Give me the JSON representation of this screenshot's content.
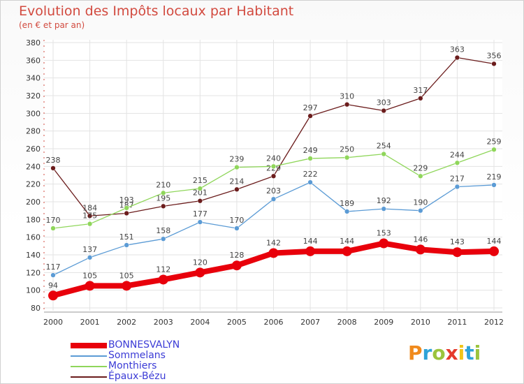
{
  "header": {
    "title": "Evolution des Impôts locaux par Habitant",
    "subtitle": "(en € et par an)"
  },
  "logo": {
    "letters": [
      "P",
      "r",
      "o",
      "x",
      "i",
      "t",
      "i"
    ],
    "colors": [
      "#f08a1c",
      "#2ea3d8",
      "#9bc43d",
      "#e53a2c",
      "#f0c419",
      "#2ea3d8",
      "#9bc43d"
    ]
  },
  "chart_data": {
    "type": "line",
    "title": "Evolution des Impôts locaux par Habitant",
    "subtitle": "(en € et par an)",
    "xlabel": "",
    "ylabel": "",
    "x": [
      "2000",
      "2001",
      "2002",
      "2003",
      "2004",
      "2005",
      "2006",
      "2007",
      "2008",
      "2009",
      "2010",
      "2011",
      "2012"
    ],
    "ylim": [
      80,
      380
    ],
    "yticks": [
      80,
      100,
      120,
      140,
      160,
      180,
      200,
      220,
      240,
      260,
      280,
      300,
      320,
      340,
      360,
      380
    ],
    "grid": true,
    "legend_position": "bottom-left",
    "series": [
      {
        "name": "BONNESVALYN",
        "color": "#e8000b",
        "values": [
          94,
          105,
          105,
          112,
          120,
          128,
          142,
          144,
          144,
          153,
          146,
          143,
          144
        ]
      },
      {
        "name": "Sommelans",
        "color": "#5b9bd5",
        "values": [
          117,
          137,
          151,
          158,
          177,
          170,
          203,
          222,
          189,
          192,
          190,
          217,
          219
        ]
      },
      {
        "name": "Monthiers",
        "color": "#8fd65a",
        "values": [
          170,
          175,
          193,
          210,
          215,
          239,
          240,
          249,
          250,
          254,
          229,
          244,
          259
        ]
      },
      {
        "name": "Épaux-Bézu",
        "color": "#6b1c1c",
        "values": [
          238,
          184,
          187,
          195,
          201,
          214,
          229,
          297,
          310,
          303,
          317,
          363,
          356
        ]
      }
    ]
  }
}
